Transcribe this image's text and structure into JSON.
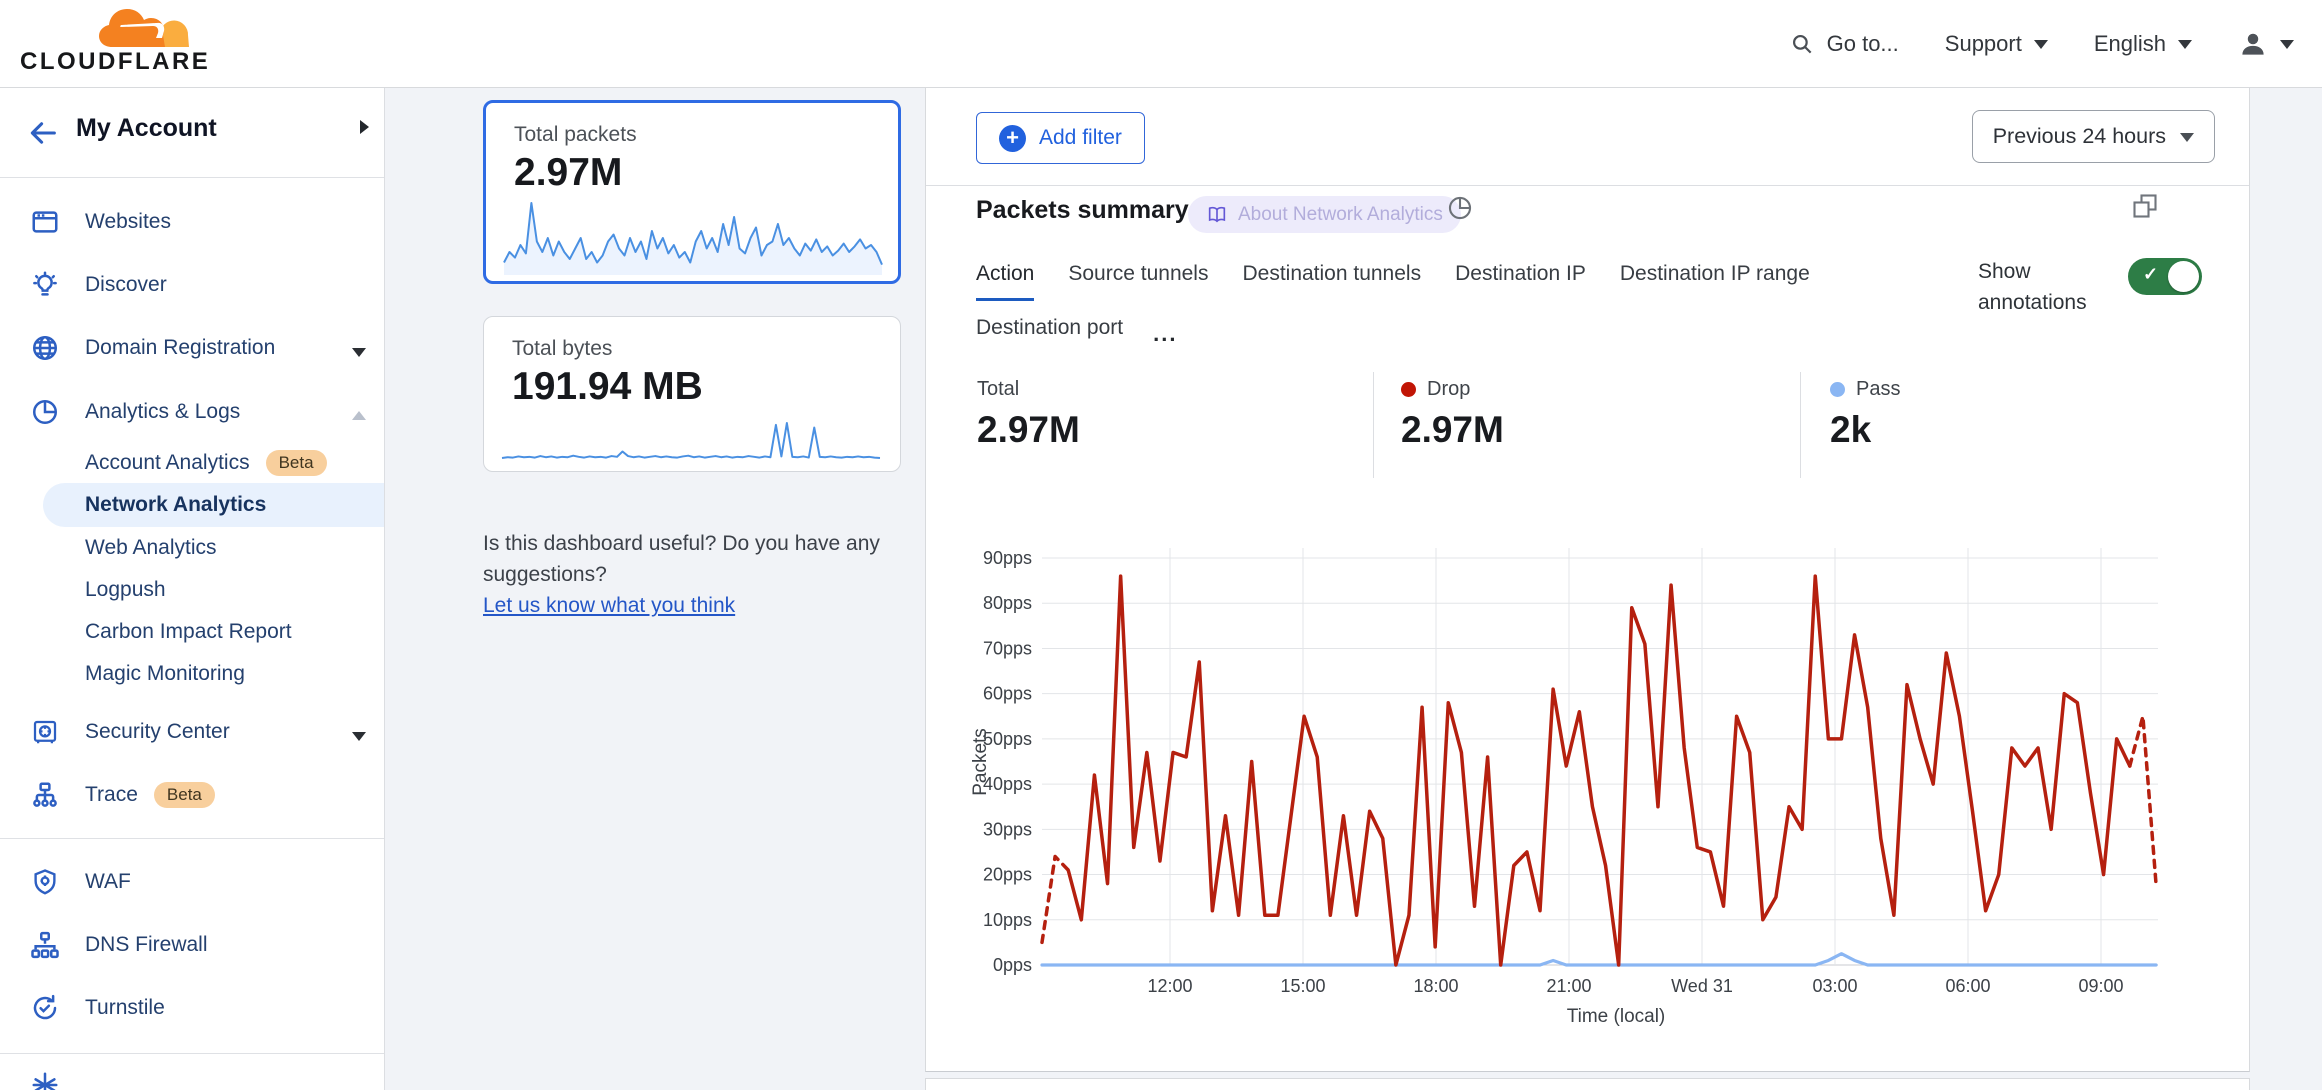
{
  "topbar": {
    "brand": "CLOUDFLARE",
    "goto": "Go to...",
    "support": "Support",
    "language": "English"
  },
  "sidebar": {
    "account_label": "My Account",
    "items": [
      {
        "label": "Websites",
        "icon": "browser"
      },
      {
        "label": "Discover",
        "icon": "bulb"
      },
      {
        "label": "Domain Registration",
        "icon": "globe",
        "caret": "down"
      },
      {
        "label": "Analytics & Logs",
        "icon": "pie",
        "caret": "up"
      },
      {
        "label": "Account Analytics",
        "sub": true,
        "badge": "Beta"
      },
      {
        "label": "Network Analytics",
        "sub": true,
        "selected": true
      },
      {
        "label": "Web Analytics",
        "sub": true
      },
      {
        "label": "Logpush",
        "sub": true
      },
      {
        "label": "Carbon Impact Report",
        "sub": true
      },
      {
        "label": "Magic Monitoring",
        "sub": true
      },
      {
        "label": "Security Center",
        "icon": "safe",
        "caret": "down"
      },
      {
        "label": "Trace",
        "icon": "trace",
        "badge": "Beta"
      },
      {
        "divider": true
      },
      {
        "label": "WAF",
        "icon": "waf"
      },
      {
        "label": "DNS Firewall",
        "icon": "dns"
      },
      {
        "label": "Turnstile",
        "icon": "turnstile"
      },
      {
        "divider": true
      },
      {
        "label": "",
        "icon": "spark",
        "partial": true
      }
    ]
  },
  "summary_cards": [
    {
      "title": "Total packets",
      "value": "2.97M",
      "spark": [
        15,
        30,
        22,
        40,
        28,
        100,
        45,
        30,
        50,
        25,
        45,
        30,
        20,
        35,
        50,
        20,
        30,
        15,
        25,
        45,
        55,
        35,
        25,
        50,
        30,
        45,
        20,
        60,
        35,
        50,
        28,
        40,
        22,
        30,
        15,
        45,
        60,
        35,
        50,
        30,
        70,
        40,
        80,
        35,
        28,
        50,
        65,
        25,
        40,
        45,
        70,
        40,
        50,
        35,
        25,
        42,
        32,
        48,
        30,
        38,
        25,
        32,
        42,
        30,
        38,
        48,
        35,
        40,
        30,
        12
      ]
    },
    {
      "title": "Total bytes",
      "value": "191.94 MB",
      "spark": [
        8,
        10,
        9,
        12,
        10,
        11,
        9,
        13,
        10,
        12,
        9,
        11,
        10,
        14,
        11,
        9,
        12,
        10,
        11,
        9,
        13,
        11,
        25,
        13,
        10,
        12,
        9,
        11,
        13,
        10,
        12,
        10,
        9,
        12,
        14,
        10,
        12,
        9,
        11,
        13,
        10,
        12,
        9,
        11,
        10,
        13,
        11,
        9,
        12,
        10,
        95,
        12,
        100,
        11,
        10,
        12,
        9,
        88,
        11,
        10,
        12,
        10,
        9,
        11,
        10,
        12,
        10,
        11,
        9,
        8
      ]
    }
  ],
  "feedback": {
    "line1": "Is this dashboard useful? Do you have any",
    "line2": "suggestions?",
    "link": "Let us know what you think"
  },
  "main": {
    "add_filter": "Add filter",
    "time_range": "Previous 24 hours",
    "panel_title": "Packets summary",
    "about_badge": "About Network Analytics",
    "tabs": [
      "Action",
      "Source tunnels",
      "Destination tunnels",
      "Destination IP",
      "Destination IP range"
    ],
    "tabs_row2": [
      "Destination port"
    ],
    "more_tabs": "...",
    "show_annotations_line1": "Show",
    "show_annotations_line2": "annotations",
    "stats": [
      {
        "label": "Total",
        "value": "2.97M",
        "dot": null
      },
      {
        "label": "Drop",
        "value": "2.97M",
        "dot": "#c11505"
      },
      {
        "label": "Pass",
        "value": "2k",
        "dot": "#8ab6f3"
      }
    ]
  },
  "chart_data": {
    "type": "line",
    "title": "Packets summary",
    "xlabel": "Time (local)",
    "ylabel": "Packets",
    "ylim": [
      0,
      90
    ],
    "grid": true,
    "y_ticks": [
      "0pps",
      "10pps",
      "20pps",
      "30pps",
      "40pps",
      "50pps",
      "60pps",
      "70pps",
      "80pps",
      "90pps"
    ],
    "x_ticks": [
      "12:00",
      "15:00",
      "18:00",
      "21:00",
      "Wed 31",
      "03:00",
      "06:00",
      "09:00"
    ],
    "series": [
      {
        "name": "Drop",
        "color": "#b5200f",
        "values": [
          5,
          24,
          21,
          10,
          42,
          18,
          86,
          26,
          47,
          23,
          47,
          46,
          67,
          12,
          33,
          11,
          45,
          11,
          11,
          33,
          55,
          46,
          11,
          33,
          11,
          34,
          28,
          0,
          11,
          57,
          4,
          58,
          47,
          13,
          46,
          0,
          22,
          25,
          12,
          61,
          44,
          56,
          35,
          22,
          0,
          79,
          71,
          35,
          84,
          48,
          26,
          25,
          13,
          55,
          47,
          10,
          15,
          35,
          30,
          86,
          50,
          50,
          73,
          57,
          28,
          11,
          62,
          50,
          40,
          69,
          55,
          34,
          12,
          20,
          48,
          44,
          48,
          30,
          60,
          58,
          38,
          20,
          50,
          44,
          55,
          18
        ]
      },
      {
        "name": "Pass",
        "color": "#8ab6f3",
        "values": [
          0,
          0,
          0,
          0,
          0,
          0,
          0,
          0,
          0,
          0,
          0,
          0,
          0,
          0,
          0,
          0,
          0,
          0,
          0,
          0,
          0,
          0,
          0,
          0,
          0,
          0,
          0,
          0,
          0,
          0,
          0,
          0,
          0,
          0,
          0,
          0,
          0,
          0,
          0,
          1,
          0,
          0,
          0,
          0,
          0,
          0,
          0,
          0,
          0,
          0,
          0,
          0,
          0,
          0,
          0,
          0,
          0,
          0,
          0,
          0,
          1,
          2.5,
          1,
          0,
          0,
          0,
          0,
          0,
          0,
          0,
          0,
          0,
          0,
          0,
          0,
          0,
          0,
          0,
          0,
          0,
          0,
          0,
          0,
          0,
          0,
          0
        ]
      }
    ],
    "legend": [
      {
        "label": "Total",
        "value": "2.97M"
      },
      {
        "label": "Drop",
        "value": "2.97M"
      },
      {
        "label": "Pass",
        "value": "2k"
      }
    ]
  }
}
